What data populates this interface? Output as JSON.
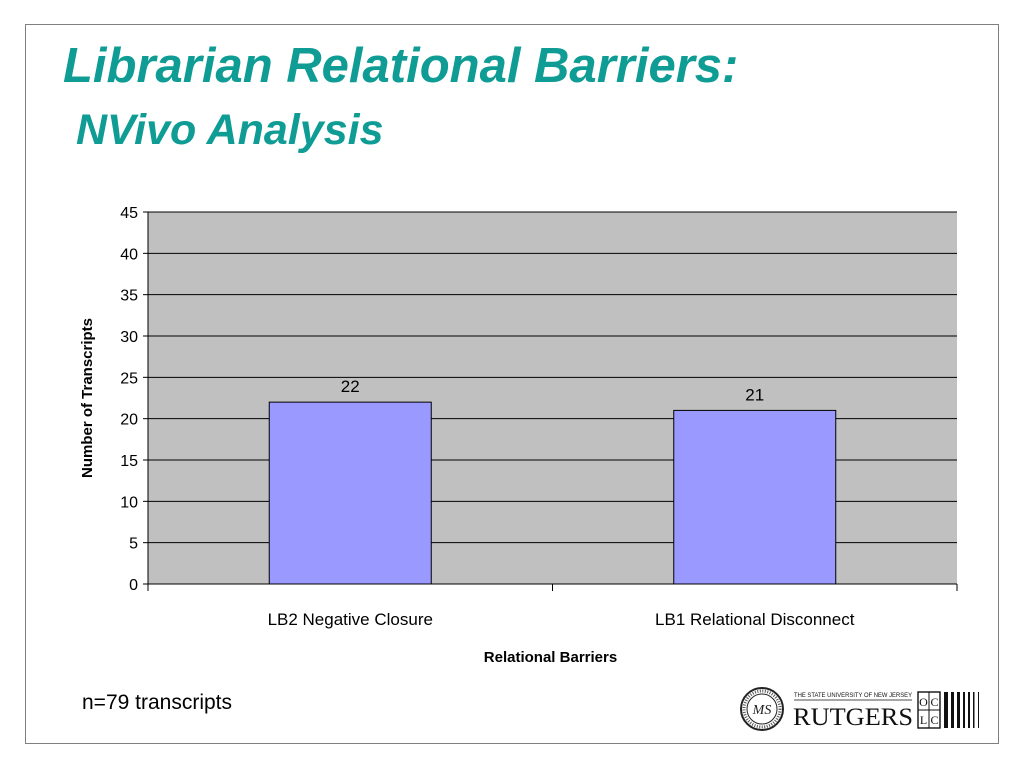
{
  "slide": {
    "title_line1": "Librarian Relational Barriers:",
    "title_line2": "NVivo Analysis",
    "footnote": "n=79 transcripts",
    "title_color": "#0e9c94"
  },
  "logos": {
    "seal_icon": "institution-seal-icon",
    "rutgers_top": "THE STATE UNIVERSITY OF NEW JERSEY",
    "rutgers_name": "RUTGERS",
    "oclc_letters": [
      "O",
      "C",
      "L",
      "C"
    ]
  },
  "chart_data": {
    "type": "bar",
    "categories": [
      "LB2 Negative Closure",
      "LB1 Relational Disconnect"
    ],
    "values": [
      22,
      21
    ],
    "data_labels": [
      "22",
      "21"
    ],
    "title": "",
    "xlabel": "Relational Barriers",
    "ylabel": "Number of Transcripts",
    "ylim": [
      0,
      45
    ],
    "yticks": [
      0,
      5,
      10,
      15,
      20,
      25,
      30,
      35,
      40,
      45
    ],
    "grid": true,
    "legend": "none",
    "bar_color": "#9999ff",
    "plot_background": "#c0c0c0"
  }
}
